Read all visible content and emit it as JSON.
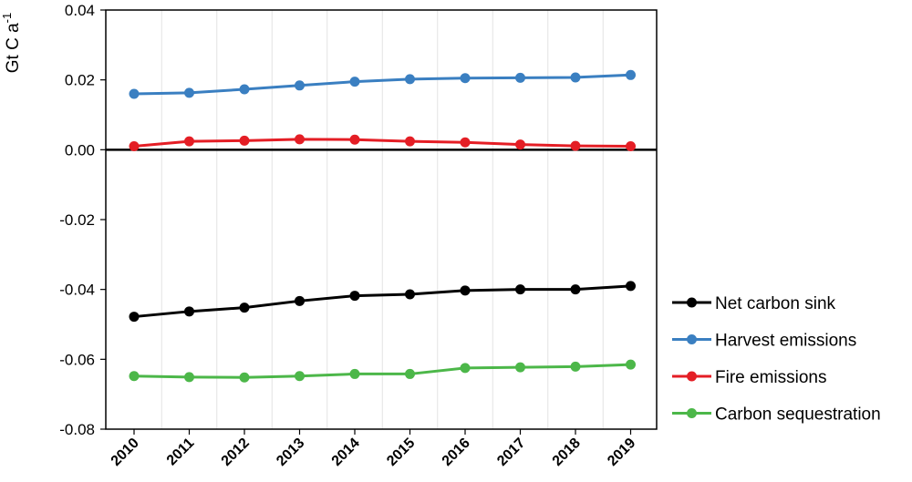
{
  "chart_data": {
    "type": "line",
    "ylabel": "Gt C a",
    "ylabel_sup": "-1",
    "ylim": [
      -0.08,
      0.04
    ],
    "yticks": [
      0.04,
      0.02,
      0.0,
      -0.02,
      -0.04,
      -0.06,
      -0.08
    ],
    "ytick_labels": [
      "0.04",
      "0.02",
      "0.00",
      "-0.02",
      "-0.04",
      "-0.06",
      "-0.08"
    ],
    "x": [
      "2010",
      "2011",
      "2012",
      "2013",
      "2014",
      "2015",
      "2016",
      "2017",
      "2018",
      "2019"
    ],
    "grid": "vertical",
    "legend_position": "bottom-right",
    "series": [
      {
        "name": "Net carbon sink",
        "color": "#000000",
        "values": [
          -0.0478,
          -0.0463,
          -0.0452,
          -0.0433,
          -0.0418,
          -0.0414,
          -0.0403,
          -0.04,
          -0.04,
          -0.039
        ]
      },
      {
        "name": "Harvest emissions",
        "color": "#3a7fc1",
        "values": [
          0.016,
          0.0163,
          0.0173,
          0.0184,
          0.0195,
          0.0202,
          0.0205,
          0.0206,
          0.0207,
          0.0214
        ]
      },
      {
        "name": "Fire emissions",
        "color": "#e41e25",
        "values": [
          0.001,
          0.0024,
          0.0026,
          0.003,
          0.0029,
          0.0024,
          0.0021,
          0.0015,
          0.0011,
          0.001
        ]
      },
      {
        "name": "Carbon sequestration",
        "color": "#4cb749",
        "values": [
          -0.0648,
          -0.0651,
          -0.0652,
          -0.0648,
          -0.0642,
          -0.0642,
          -0.0625,
          -0.0623,
          -0.0621,
          -0.0615
        ]
      }
    ]
  }
}
